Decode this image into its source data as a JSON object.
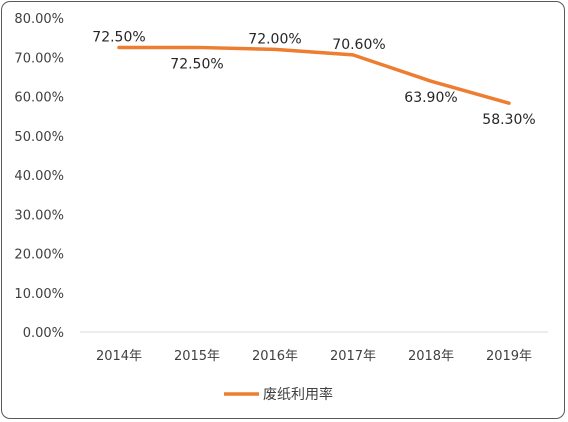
{
  "chart_data": {
    "type": "line",
    "categories": [
      "2014年",
      "2015年",
      "2016年",
      "2017年",
      "2018年",
      "2019年"
    ],
    "series": [
      {
        "name": "废纸利用率",
        "values": [
          72.5,
          72.5,
          72.0,
          70.6,
          63.9,
          58.3
        ],
        "labels": [
          "72.50%",
          "72.50%",
          "72.00%",
          "70.60%",
          "63.90%",
          "58.30%"
        ],
        "color": "#ED7D31"
      }
    ],
    "ylim": [
      0,
      80
    ],
    "yticks": [
      "0.00%",
      "10.00%",
      "20.00%",
      "30.00%",
      "40.00%",
      "50.00%",
      "60.00%",
      "70.00%",
      "80.00%"
    ],
    "grid": false,
    "legend_position": "bottom",
    "title": "",
    "xlabel": "",
    "ylabel": ""
  },
  "colors": {
    "axis": "#D9D9D9",
    "border": "#595959"
  }
}
